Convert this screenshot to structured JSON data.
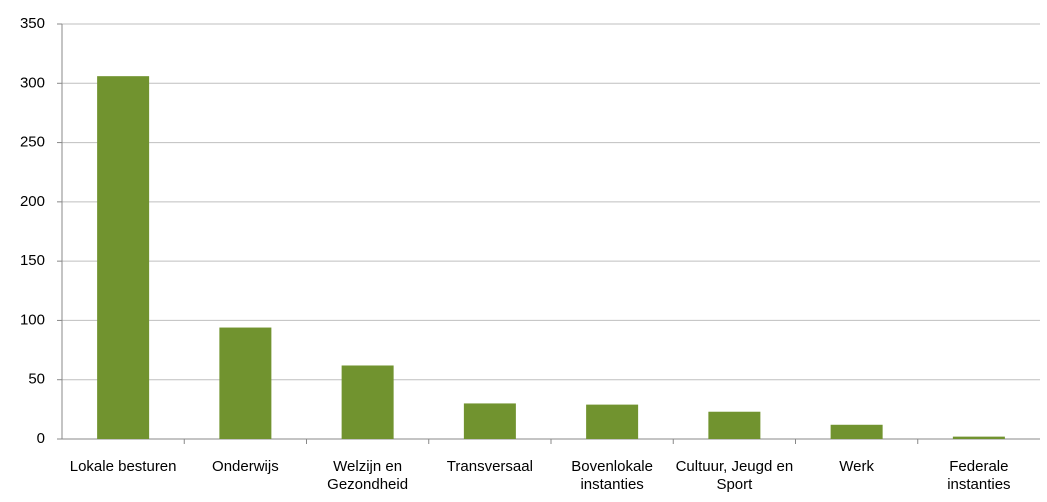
{
  "chart_data": {
    "type": "bar",
    "categories": [
      "Lokale besturen",
      "Onderwijs",
      "Welzijn en Gezondheid",
      "Transversaal",
      "Bovenlokale instanties",
      "Cultuur, Jeugd en Sport",
      "Werk",
      "Federale instanties"
    ],
    "values": [
      306,
      94,
      62,
      30,
      29,
      23,
      12,
      2
    ],
    "color": "#71932f",
    "ylim": [
      0,
      350
    ],
    "yticks": [
      0,
      50,
      100,
      150,
      200,
      250,
      300,
      350
    ],
    "grid": true
  }
}
